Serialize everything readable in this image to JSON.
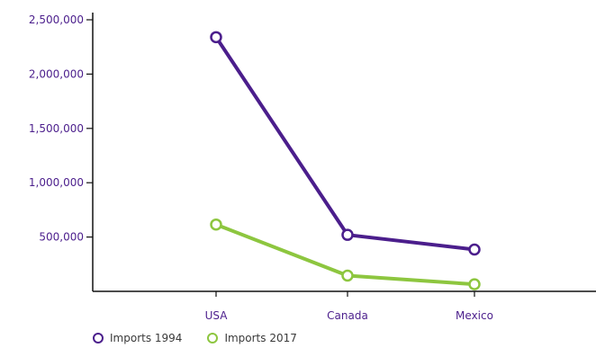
{
  "chart_data": {
    "type": "line",
    "categories": [
      "USA",
      "Canada",
      "Mexico"
    ],
    "series": [
      {
        "name": "Imports 1994",
        "color": "#4b1e8c",
        "values": [
          2340000,
          520000,
          385000
        ]
      },
      {
        "name": "Imports 2017",
        "color": "#8dc63f",
        "values": [
          615000,
          145000,
          65000
        ]
      }
    ],
    "y_ticks": [
      500000,
      1000000,
      1500000,
      2000000,
      2500000
    ],
    "y_tick_labels": [
      "500,000",
      "1,000,000",
      "1,500,000",
      "2,000,000",
      "2,500,000"
    ],
    "ylim": [
      0,
      2500000
    ],
    "grid": false,
    "legend_position": "bottom-left"
  }
}
